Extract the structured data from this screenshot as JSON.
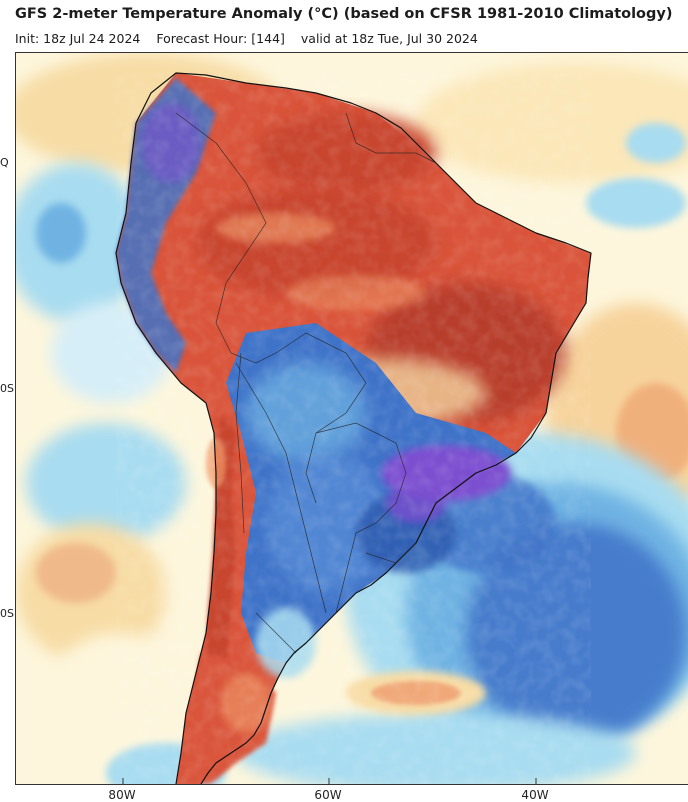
{
  "header": {
    "title": "GFS 2-meter Temperature Anomaly (°C) (based on CFSR 1981-2010 Climatology)",
    "init": "Init: 18z Jul 24 2024",
    "forecast_hour": "Forecast Hour: [144]",
    "valid": "valid at 18z Tue, Jul 30 2024"
  },
  "axes": {
    "lat_labels": [
      "Q",
      "0S",
      "0S"
    ],
    "lon_labels": [
      "80W",
      "60W",
      "40W"
    ]
  },
  "colors": {
    "very_warm": "#b33a2a",
    "warm": "#d9543a",
    "mild_warm": "#f09a6a",
    "slightly_warm": "#f7dca5",
    "neutral": "#ffffff",
    "slightly_cool": "#a8dcf0",
    "cool": "#6fb3e3",
    "cold": "#3f73c8",
    "very_cold": "#7b4fd0",
    "coastline": "#111111"
  }
}
